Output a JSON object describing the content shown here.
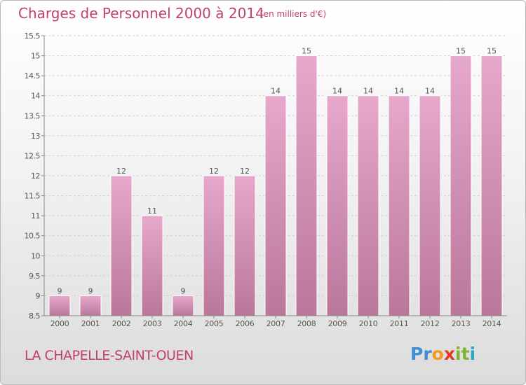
{
  "title": "Charges de Personnel 2000 à 2014",
  "subtitle": "(en milliers d'€)",
  "place": "LA CHAPELLE-SAINT-OUEN",
  "logo": {
    "letters": [
      "P",
      "r",
      "o",
      "x",
      "i",
      "t",
      "i"
    ],
    "colors": [
      "#3f8fd0",
      "#3f8fd0",
      "#f19a1c",
      "#e23a26",
      "#7fb533",
      "#7fb533",
      "#2aa7c7"
    ]
  },
  "chart_data": {
    "type": "bar",
    "categories": [
      "2000",
      "2001",
      "2002",
      "2003",
      "2004",
      "2005",
      "2006",
      "2007",
      "2008",
      "2009",
      "2010",
      "2011",
      "2012",
      "2013",
      "2014"
    ],
    "values": [
      9,
      9,
      12,
      11,
      9,
      12,
      12,
      14,
      15,
      14,
      14,
      14,
      14,
      15,
      15
    ],
    "labels": [
      "9",
      "9",
      "12",
      "11",
      "9",
      "12",
      "12",
      "14",
      "15",
      "14",
      "14",
      "14",
      "14",
      "15",
      "15"
    ],
    "ylim": [
      8.5,
      15.5
    ],
    "yticks": [
      8.5,
      9,
      9.5,
      10,
      10.5,
      11,
      11.5,
      12,
      12.5,
      13,
      13.5,
      14,
      14.5,
      15,
      15.5
    ],
    "ytick_labels": [
      "8.5",
      "9",
      "9.5",
      "10",
      "10.5",
      "11",
      "11.5",
      "12",
      "12.5",
      "13",
      "13.5",
      "14",
      "14.5",
      "15",
      "15.5"
    ],
    "grid": true,
    "bar_color_top": "#e6a8cc",
    "bar_color_bottom": "#b9779b"
  }
}
